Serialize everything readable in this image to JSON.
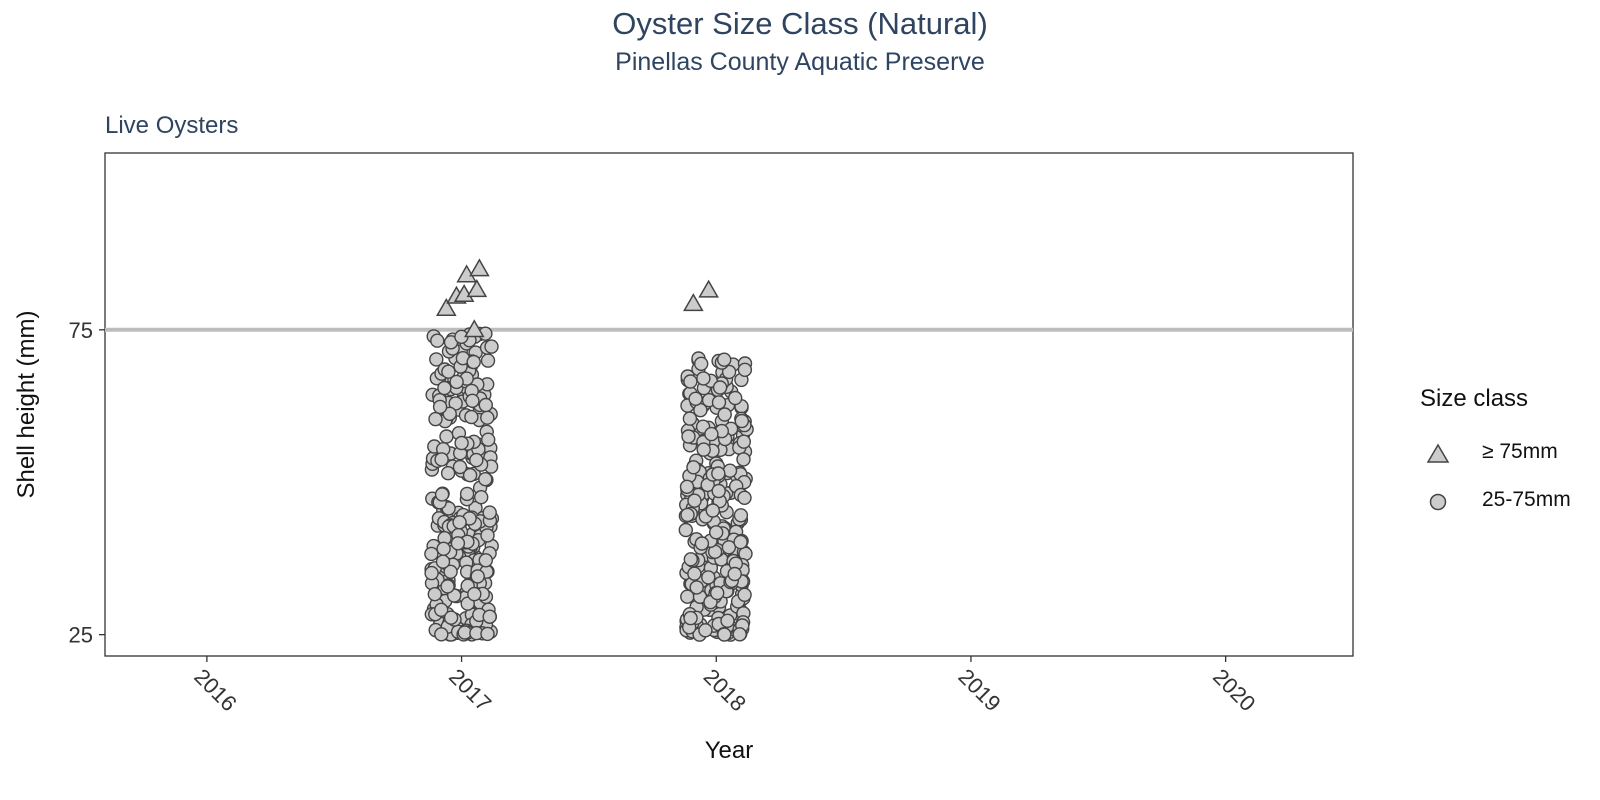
{
  "chart_data": {
    "type": "scatter",
    "title": "Oyster Size Class (Natural)",
    "subtitle": "Pinellas County Aquatic Preserve",
    "facet": "Live Oysters",
    "xlabel": "Year",
    "ylabel": "Shell height (mm)",
    "x_ticks": [
      "2016",
      "2017",
      "2018",
      "2019",
      "2020"
    ],
    "y_ticks": [
      25,
      75
    ],
    "xlim": [
      2015.6,
      2020.5
    ],
    "ylim": [
      21.5,
      104
    ],
    "reference_line": {
      "y": 75,
      "color": "#bdbdbd"
    },
    "legend": {
      "title": "Size class",
      "position": "right"
    },
    "grid": false,
    "series": [
      {
        "name": "≥ 75mm",
        "marker": "triangle",
        "points": [
          {
            "x": 2016.94,
            "y": 78.5
          },
          {
            "x": 2016.98,
            "y": 80.5
          },
          {
            "x": 2017.01,
            "y": 80.8
          },
          {
            "x": 2017.02,
            "y": 84.0
          },
          {
            "x": 2017.05,
            "y": 75.0
          },
          {
            "x": 2017.06,
            "y": 81.6
          },
          {
            "x": 2017.07,
            "y": 85.0
          },
          {
            "x": 2017.91,
            "y": 79.3
          },
          {
            "x": 2017.97,
            "y": 81.5
          }
        ]
      },
      {
        "name": "25-75mm",
        "marker": "circle",
        "groups": [
          {
            "year": 2017,
            "x_center": 2017.0,
            "x_spread": 0.12,
            "n": 300,
            "y_min": 25,
            "y_max": 74.5
          },
          {
            "year": 2018,
            "x_center": 2018.0,
            "x_spread": 0.12,
            "n": 300,
            "y_min": 25,
            "y_max": 72
          }
        ]
      }
    ],
    "colors": {
      "fill": "#cccccc",
      "stroke": "#444444",
      "reference_line": "#bdbdbd",
      "title": "#2e4460"
    }
  }
}
